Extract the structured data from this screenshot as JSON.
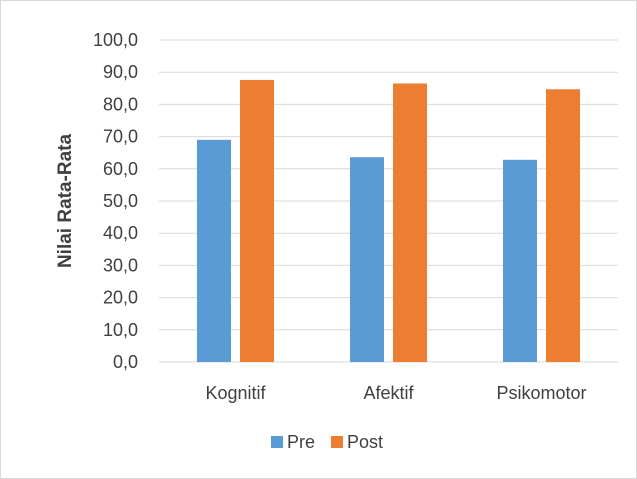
{
  "chart_data": {
    "type": "bar",
    "title": "",
    "xlabel": "",
    "ylabel": "Nilai Rata-Rata",
    "ylim": [
      0,
      100
    ],
    "ytick_step": 10,
    "ytick_labels": [
      "0,0",
      "10,0",
      "20,0",
      "30,0",
      "40,0",
      "50,0",
      "60,0",
      "70,0",
      "80,0",
      "90,0",
      "100,0"
    ],
    "categories": [
      "Kognitif",
      "Afektif",
      "Psikomotor"
    ],
    "series": [
      {
        "name": "Pre",
        "color": "#5b9bd5",
        "values": [
          69.0,
          63.6,
          62.8
        ]
      },
      {
        "name": "Post",
        "color": "#ed7d31",
        "values": [
          87.6,
          86.5,
          84.7
        ]
      }
    ],
    "grid": true,
    "legend": "bottom"
  }
}
